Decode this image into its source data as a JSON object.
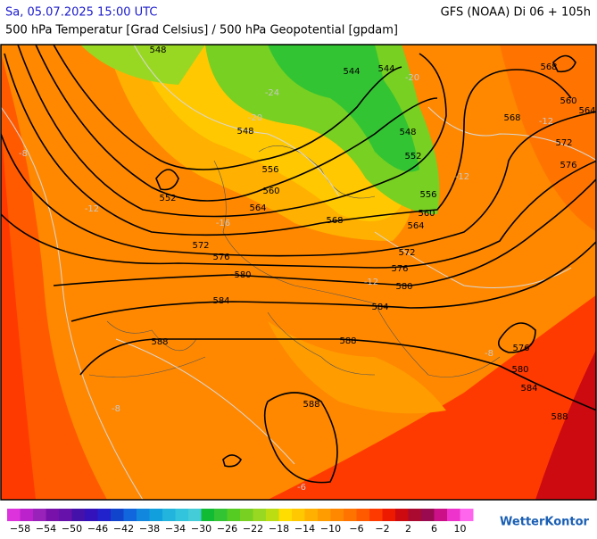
{
  "header": {
    "timestamp": "Sa, 05.07.2025 15:00 UTC",
    "model": "GFS (NOAA) Di 06 + 105h",
    "subtitle": "500 hPa Temperatur [Grad Celsius] / 500 hPa Geopotential [gpdam]"
  },
  "map": {
    "contour_labels": [
      "548",
      "544",
      "544",
      "548",
      "552",
      "556",
      "560",
      "564",
      "568",
      "572",
      "576",
      "580",
      "584",
      "588",
      "548",
      "552",
      "556",
      "560",
      "564",
      "568",
      "572",
      "576",
      "580",
      "584",
      "588",
      "576",
      "580",
      "584",
      "588",
      "560",
      "564",
      "568",
      "572",
      "576",
      "588"
    ],
    "temperature_labels": [
      "-24",
      "-20",
      "-20",
      "-16",
      "-12",
      "-12",
      "-12",
      "-12",
      "-8",
      "-8",
      "-8",
      "-6"
    ]
  },
  "legend": {
    "labels": [
      "−58",
      "−54",
      "−50",
      "−46",
      "−42",
      "−38",
      "−34",
      "−30",
      "−26",
      "−22",
      "−18",
      "−14",
      "−10",
      "−6",
      "−2",
      "2",
      "6",
      "10"
    ],
    "colors": [
      "#dd33dd",
      "#bb22cc",
      "#9922bb",
      "#7711aa",
      "#6611aa",
      "#4411aa",
      "#3311bb",
      "#2222cc",
      "#1144cc",
      "#1166dd",
      "#1188dd",
      "#11a0dd",
      "#22b4dd",
      "#33c4dd",
      "#44ccd8",
      "#11bb33",
      "#33c433",
      "#55cc22",
      "#77d022",
      "#99d822",
      "#bbdd11",
      "#ffdd00",
      "#ffc800",
      "#ffb000",
      "#ff9c00",
      "#ff8800",
      "#ff7400",
      "#ff5a00",
      "#ff3a00",
      "#ee1a00",
      "#cc0a10",
      "#aa0a30",
      "#990a50",
      "#cc1188",
      "#ee33cc",
      "#ff66ee"
    ]
  },
  "brand": "WetterKontor"
}
